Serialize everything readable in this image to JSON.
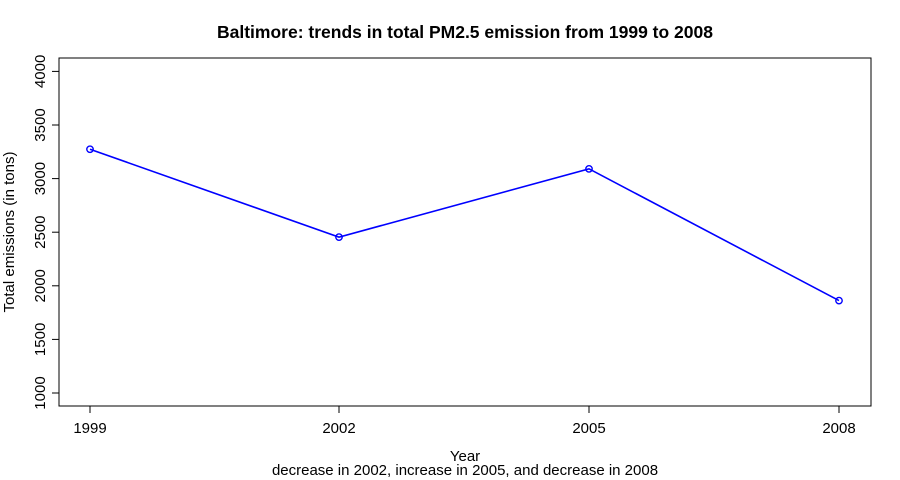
{
  "chart_data": {
    "type": "line",
    "title": "Baltimore: trends in total PM2.5 emission from 1999 to 2008",
    "subtitle": "decrease in 2002, increase in 2005, and decrease in 2008",
    "xlabel": "Year",
    "ylabel": "Total emissions (in tons)",
    "categories": [
      "1999",
      "2002",
      "2005",
      "2008"
    ],
    "series": [
      {
        "values": [
          3274,
          2454,
          3091,
          1862
        ],
        "color": "#0000ff",
        "marker": "open-circle"
      }
    ],
    "yticks": [
      1000,
      1500,
      2000,
      2500,
      3000,
      3500,
      4000
    ],
    "ylim": [
      1000,
      4000
    ],
    "grid": false,
    "legend": "none"
  }
}
